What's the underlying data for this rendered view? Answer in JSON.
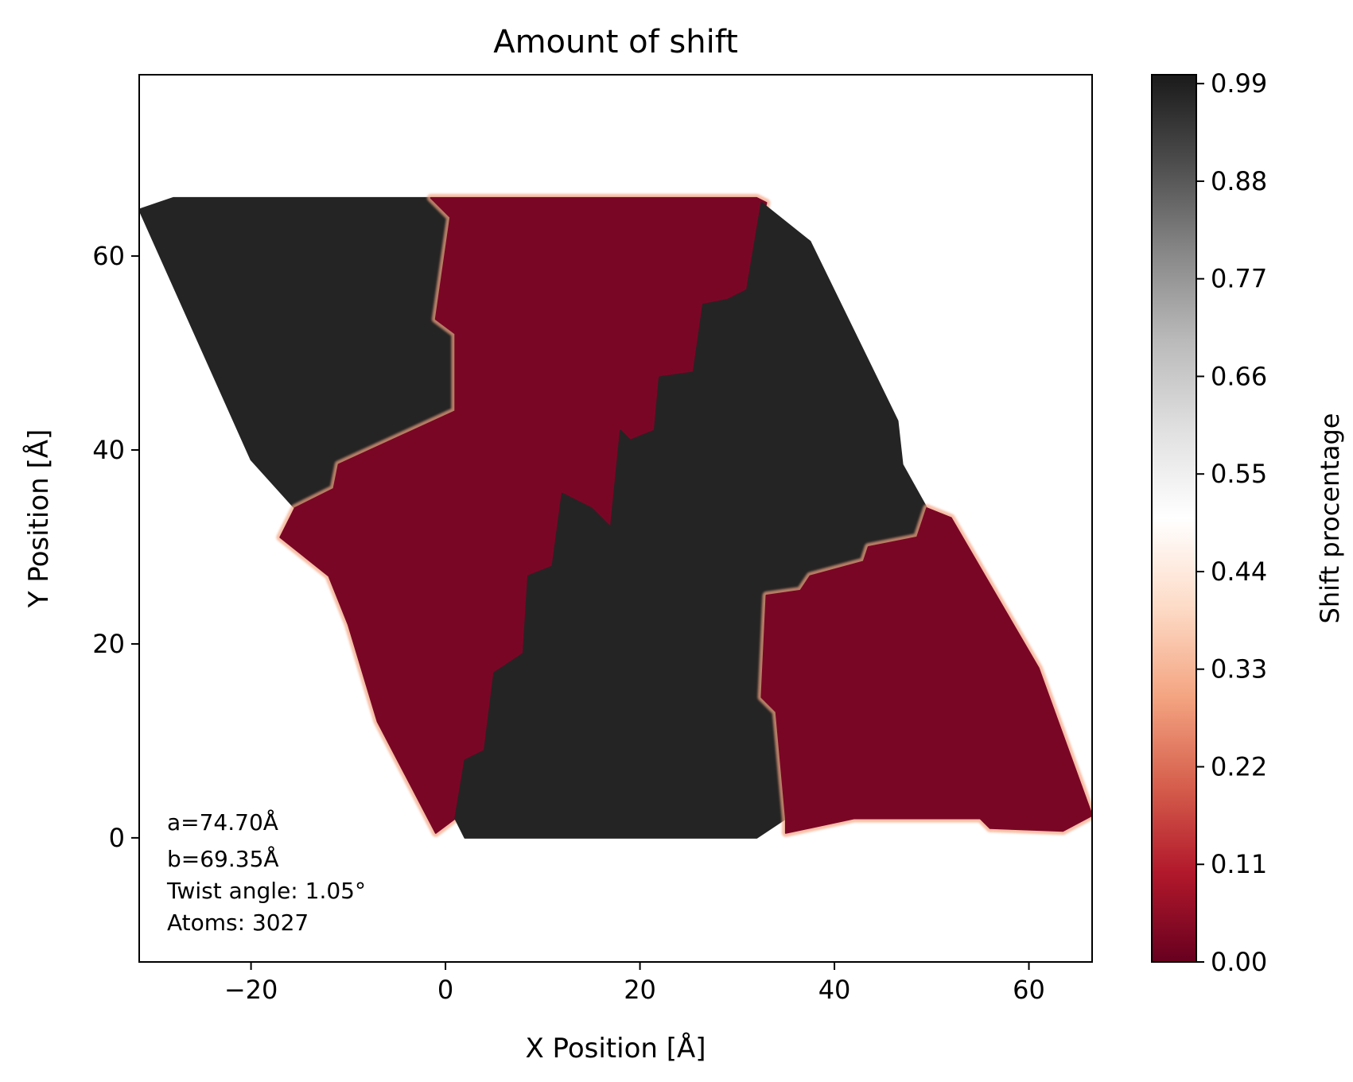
{
  "chart_data": {
    "type": "heatmap",
    "title": "Amount of shift",
    "xlabel": "X Position [Å]",
    "ylabel": "Y Position [Å]",
    "xlim": [
      -31.5,
      66.5
    ],
    "ylim": [
      -12.8,
      78.7
    ],
    "x_ticks": [
      -20,
      0,
      20,
      40,
      60
    ],
    "x_tick_labels": [
      "−20",
      "0",
      "20",
      "40",
      "60"
    ],
    "y_ticks": [
      0,
      20,
      40,
      60
    ],
    "y_tick_labels": [
      "0",
      "20",
      "40",
      "60"
    ],
    "grid": false,
    "colorbar": {
      "label": "Shift procentage",
      "range": [
        0,
        1
      ],
      "ticks": [
        0.0,
        0.11,
        0.22,
        0.33,
        0.44,
        0.55,
        0.66,
        0.77,
        0.88,
        0.99
      ],
      "tick_labels": [
        "0.00",
        "0.11",
        "0.22",
        "0.33",
        "0.44",
        "0.55",
        "0.66",
        "0.77",
        "0.88",
        "0.99"
      ],
      "colormap": "RdGy"
    },
    "colors": {
      "low": "#6b0020",
      "mid_low": "#7a0625",
      "boundary": "#ffffff",
      "high": "#242424",
      "high_dark": "#1d1d1d"
    },
    "annotation": {
      "lines": [
        "a=74.70Å",
        "b=69.35Å",
        "Twist angle: 1.05°",
        "Atoms: 3027"
      ]
    },
    "outline": [
      [
        -31.5,
        64.8
      ],
      [
        -28,
        66
      ],
      [
        32,
        66
      ],
      [
        37.5,
        61.5
      ],
      [
        52,
        33
      ],
      [
        61,
        17.5
      ],
      [
        66.5,
        2.3
      ],
      [
        63.5,
        0.7
      ],
      [
        0,
        0
      ]
    ],
    "regions": [
      {
        "name": "dark-top-left",
        "value": 0.99,
        "points": [
          [
            -31.5,
            64.8
          ],
          [
            -28,
            66
          ],
          [
            -1.5,
            66
          ],
          [
            0.5,
            64
          ],
          [
            -1,
            53.5
          ],
          [
            1,
            52
          ],
          [
            1,
            44
          ],
          [
            -11,
            38.5
          ],
          [
            -11.5,
            36
          ],
          [
            -15.5,
            34
          ],
          [
            -20,
            39
          ]
        ]
      },
      {
        "name": "red-upper",
        "value": 0.02,
        "points": [
          [
            -1.5,
            66
          ],
          [
            32,
            66
          ],
          [
            33,
            65.5
          ],
          [
            31,
            56.5
          ],
          [
            29,
            55.5
          ],
          [
            26.5,
            55
          ],
          [
            25.5,
            48
          ],
          [
            22,
            47.5
          ],
          [
            21.5,
            42
          ],
          [
            19,
            41
          ],
          [
            18,
            42
          ],
          [
            17,
            32
          ],
          [
            15,
            34
          ],
          [
            12,
            35.5
          ],
          [
            11,
            28
          ],
          [
            8.5,
            27
          ],
          [
            8,
            19
          ],
          [
            5,
            17
          ],
          [
            4,
            9
          ],
          [
            2,
            8
          ],
          [
            1,
            2
          ],
          [
            -1,
            0.5
          ],
          [
            -7,
            12
          ],
          [
            -10,
            22
          ],
          [
            -12,
            27
          ],
          [
            -17,
            31
          ],
          [
            -15.5,
            34
          ],
          [
            -11.5,
            36
          ],
          [
            -11,
            38.5
          ],
          [
            1,
            44
          ],
          [
            1,
            52
          ],
          [
            -1,
            53.5
          ],
          [
            0.5,
            64
          ]
        ]
      },
      {
        "name": "dark-center",
        "value": 0.99,
        "points": [
          [
            32.5,
            65.5
          ],
          [
            37.5,
            61.5
          ],
          [
            46.5,
            43
          ],
          [
            47,
            38.5
          ],
          [
            49.5,
            34
          ],
          [
            48.5,
            31
          ],
          [
            43.5,
            30
          ],
          [
            43,
            28.5
          ],
          [
            37.5,
            27
          ],
          [
            36.5,
            25.5
          ],
          [
            33,
            25
          ],
          [
            32.5,
            14.5
          ],
          [
            34,
            13
          ],
          [
            35,
            2
          ],
          [
            32,
            0
          ],
          [
            2,
            0
          ],
          [
            1,
            2
          ],
          [
            2,
            8
          ],
          [
            4,
            9
          ],
          [
            5,
            17
          ],
          [
            8,
            19
          ],
          [
            8.5,
            27
          ],
          [
            11,
            28
          ],
          [
            12,
            35.5
          ],
          [
            15,
            34
          ],
          [
            17,
            32
          ],
          [
            18,
            42
          ],
          [
            19,
            41
          ],
          [
            21.5,
            42
          ],
          [
            22,
            47.5
          ],
          [
            25.5,
            48
          ],
          [
            26.5,
            55
          ],
          [
            29,
            55.5
          ],
          [
            31,
            56.5
          ]
        ]
      },
      {
        "name": "red-lower-right",
        "value": 0.02,
        "points": [
          [
            49.5,
            34
          ],
          [
            52,
            33
          ],
          [
            61,
            17.5
          ],
          [
            66.5,
            2.3
          ],
          [
            63.5,
            0.7
          ],
          [
            56,
            1
          ],
          [
            55,
            2
          ],
          [
            42,
            2
          ],
          [
            35,
            0.5
          ],
          [
            35,
            2
          ],
          [
            34,
            13
          ],
          [
            32.5,
            14.5
          ],
          [
            33,
            25
          ],
          [
            36.5,
            25.5
          ],
          [
            37.5,
            27
          ],
          [
            43,
            28.5
          ],
          [
            43.5,
            30
          ],
          [
            48.5,
            31
          ]
        ]
      }
    ]
  }
}
